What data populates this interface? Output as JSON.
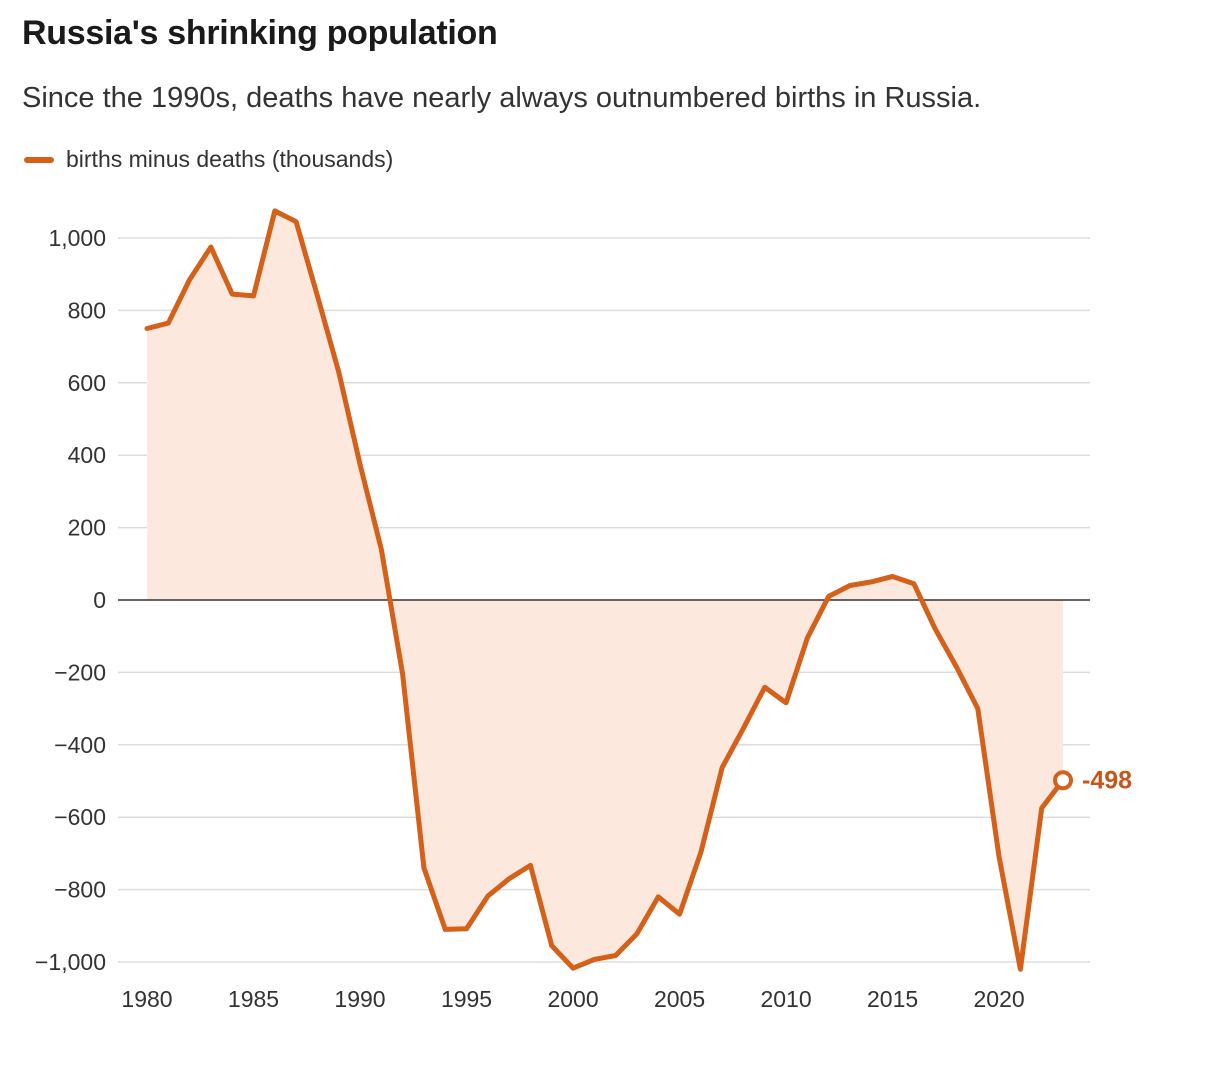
{
  "header": {
    "title": "Russia's shrinking population",
    "subtitle": "Since the 1990s, deaths have nearly always outnumbered births in Russia."
  },
  "legend": {
    "label": "births minus deaths (thousands)"
  },
  "colors": {
    "line": "#d4601a",
    "fill": "#fde8dd",
    "grid": "#dddddd",
    "zero": "#333333",
    "label": "#c8561a"
  },
  "chart_data": {
    "type": "area",
    "title": "Russia's shrinking population",
    "subtitle": "Since the 1990s, deaths have nearly always outnumbered births in Russia.",
    "xlabel": "",
    "ylabel": "",
    "xlim": [
      1980,
      2023
    ],
    "ylim": [
      -1000,
      1000
    ],
    "grid": true,
    "legend_position": "top-left",
    "x_ticks": [
      1980,
      1985,
      1990,
      1995,
      2000,
      2005,
      2010,
      2015,
      2020
    ],
    "y_ticks": [
      1000,
      800,
      600,
      400,
      200,
      0,
      -200,
      -400,
      -600,
      -800,
      -1000
    ],
    "y_tick_labels": [
      "1,000",
      "800",
      "600",
      "400",
      "200",
      "0",
      "−200",
      "−400",
      "−600",
      "−800",
      "−1,000"
    ],
    "series": [
      {
        "name": "births minus deaths (thousands)",
        "x": [
          1980,
          1981,
          1982,
          1983,
          1984,
          1985,
          1986,
          1987,
          1988,
          1989,
          1990,
          1991,
          1992,
          1993,
          1994,
          1995,
          1996,
          1997,
          1998,
          1999,
          2000,
          2001,
          2002,
          2003,
          2004,
          2005,
          2006,
          2007,
          2008,
          2009,
          2010,
          2011,
          2012,
          2013,
          2014,
          2015,
          2016,
          2017,
          2018,
          2019,
          2020,
          2021,
          2022,
          2023
        ],
        "values": [
          750,
          765,
          885,
          975,
          845,
          840,
          1075,
          1045,
          840,
          630,
          375,
          140,
          -205,
          -740,
          -910,
          -908,
          -818,
          -770,
          -733,
          -955,
          -1017,
          -993,
          -982,
          -922,
          -820,
          -868,
          -697,
          -463,
          -354,
          -241,
          -284,
          -105,
          10,
          40,
          50,
          65,
          45,
          -80,
          -185,
          -300,
          -710,
          -1020,
          -575,
          -498
        ]
      }
    ],
    "annotations": [
      {
        "x": 2023,
        "y": -498,
        "text": "-498"
      }
    ]
  }
}
